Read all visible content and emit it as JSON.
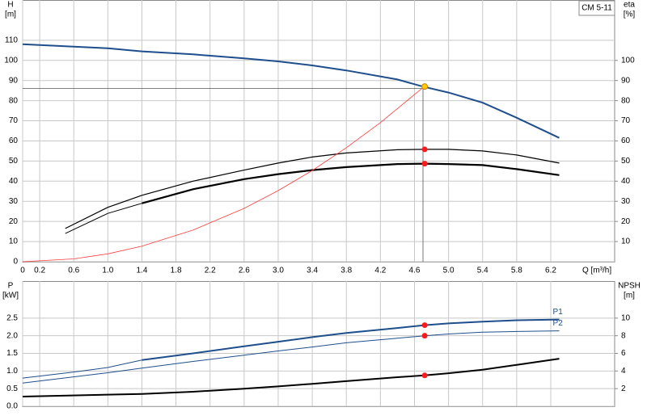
{
  "chart_data": [
    {
      "type": "line",
      "title": "CM 5-11",
      "ylabel": "H",
      "yunit": "[m]",
      "y2label": "eta",
      "y2unit": "[%]",
      "xlabel": "Q [m³/h]",
      "xlim": [
        0,
        6.95
      ],
      "xticks": [
        0,
        0.2,
        0.6,
        {
          "value": 1,
          "label": "1.0"
        },
        1.4,
        1.8,
        2.2,
        2.6,
        {
          "value": 3,
          "label": "3.0"
        },
        3.4,
        3.8,
        4.2,
        4.6,
        {
          "value": 5,
          "label": "5.0"
        },
        5.4,
        5.8,
        6.2
      ],
      "ylim": [
        0,
        130
      ],
      "yticks": [
        0,
        10,
        20,
        30,
        40,
        50,
        60,
        70,
        80,
        90,
        100,
        110
      ],
      "y2lim": [
        0,
        130
      ],
      "y2ticks": [
        10,
        20,
        30,
        40,
        50,
        60,
        70,
        80,
        90,
        100
      ],
      "grid": true,
      "crosshair": [
        4.7,
        86
      ],
      "series": [
        {
          "color": "#1f4e8c",
          "width": 2,
          "x": [
            0,
            1.0,
            1.4,
            2.0,
            2.6,
            3.0,
            3.4,
            3.8,
            4.4,
            4.7,
            5.0,
            5.4,
            5.8,
            6.3
          ],
          "values": [
            108,
            106,
            104.5,
            103,
            101,
            99.5,
            97.5,
            95,
            90.5,
            87,
            84,
            79,
            71.5,
            61.5
          ]
        },
        {
          "color": "#000000",
          "width": 1,
          "x": [
            0.5,
            1.0,
            1.4
          ],
          "values": [
            14,
            24,
            29
          ],
          "axis": "y2"
        },
        {
          "color": "#000000",
          "width": 2.2,
          "x": [
            1.4,
            2.0,
            2.6,
            3.0,
            3.4,
            3.8,
            4.4,
            4.72,
            5.0,
            5.4,
            5.8,
            6.3
          ],
          "values": [
            29,
            36,
            41,
            43.5,
            45.5,
            47,
            48.5,
            48.7,
            48.5,
            48,
            46,
            43
          ],
          "axis": "y2"
        },
        {
          "color": "#000000",
          "width": 1.2,
          "x": [
            0.5,
            1.0,
            1.4,
            2.0,
            2.6,
            3.0,
            3.4,
            3.8,
            4.4,
            4.72,
            5.0,
            5.4,
            5.8,
            6.3
          ],
          "values": [
            16.5,
            27,
            33,
            40,
            45.5,
            49,
            52,
            54,
            55.6,
            55.8,
            55.8,
            55,
            53,
            49
          ],
          "axis": "y2"
        },
        {
          "color": "#ff3b3b",
          "width": 0.8,
          "x": [
            0,
            0.6,
            1.0,
            1.4,
            2.0,
            2.6,
            3.0,
            3.4,
            3.8,
            4.2,
            4.7
          ],
          "values": [
            0,
            1.4,
            3.9,
            7.7,
            15.7,
            26.5,
            35.3,
            45.3,
            56.6,
            69.1,
            86.5
          ]
        },
        {
          "color": "#ff1a1a",
          "markers": true,
          "x": [
            4.72,
            4.72
          ],
          "values": [
            55.8,
            48.7
          ],
          "axis": "y2"
        },
        {
          "color": "#ffcc00",
          "markers": true,
          "x": [
            4.72
          ],
          "values": [
            87
          ]
        }
      ]
    },
    {
      "type": "line",
      "ylabel": "P",
      "yunit": "[kW]",
      "y2label": "NPSH",
      "y2unit": "[m]",
      "xlim": [
        0,
        6.95
      ],
      "xticks": [
        0,
        0.2,
        0.6,
        1,
        1.4,
        1.8,
        2.2,
        2.6,
        3,
        3.4,
        3.8,
        4.2,
        4.6,
        5,
        5.4,
        5.8,
        6.2
      ],
      "ylim": [
        0,
        3.55
      ],
      "yticks": [
        {
          "value": 0,
          "label": "0.0"
        },
        0.5,
        {
          "value": 1,
          "label": "1.0"
        },
        1.5,
        {
          "value": 2,
          "label": "2.0"
        },
        2.5
      ],
      "y2lim": [
        0,
        14.2
      ],
      "y2ticks": [
        2,
        4,
        6,
        8,
        10
      ],
      "grid": true,
      "series": [
        {
          "color": "#1f4e8c",
          "width": 1,
          "x": [
            0,
            0.6,
            1.0,
            1.4
          ],
          "values": [
            0.8,
            0.97,
            1.1,
            1.31
          ]
        },
        {
          "name": "P1",
          "color": "#1f4e8c",
          "width": 2,
          "x": [
            1.4,
            2.0,
            2.6,
            3.0,
            3.4,
            3.8,
            4.4,
            4.72,
            5.0,
            5.4,
            5.8,
            6.3
          ],
          "values": [
            1.31,
            1.5,
            1.7,
            1.83,
            1.96,
            2.08,
            2.22,
            2.3,
            2.35,
            2.4,
            2.44,
            2.46
          ]
        },
        {
          "name": "P2",
          "color": "#1f4e8c",
          "width": 1,
          "x": [
            0,
            1.0,
            1.4,
            2.0,
            2.6,
            3.0,
            3.4,
            3.8,
            4.4,
            4.72,
            5.0,
            5.4,
            5.8,
            6.3
          ],
          "values": [
            0.66,
            0.95,
            1.08,
            1.27,
            1.45,
            1.57,
            1.68,
            1.8,
            1.93,
            2.0,
            2.05,
            2.1,
            2.12,
            2.14
          ]
        },
        {
          "color": "#000000",
          "width": 2,
          "x": [
            0,
            1.4,
            2.0,
            2.6,
            3.0,
            3.4,
            3.8,
            4.4,
            4.72,
            5.0,
            5.4,
            5.8,
            6.3
          ],
          "values": [
            1.1,
            1.4,
            1.65,
            2.0,
            2.25,
            2.55,
            2.85,
            3.3,
            3.5,
            3.75,
            4.15,
            4.7,
            5.4
          ],
          "axis": "y2"
        },
        {
          "color": "#ff1a1a",
          "markers": true,
          "x": [
            4.72,
            4.72
          ],
          "values": [
            2.3,
            2.0
          ]
        },
        {
          "color": "#ff1a1a",
          "markers": true,
          "x": [
            4.72
          ],
          "values": [
            3.5
          ],
          "axis": "y2"
        }
      ]
    }
  ]
}
